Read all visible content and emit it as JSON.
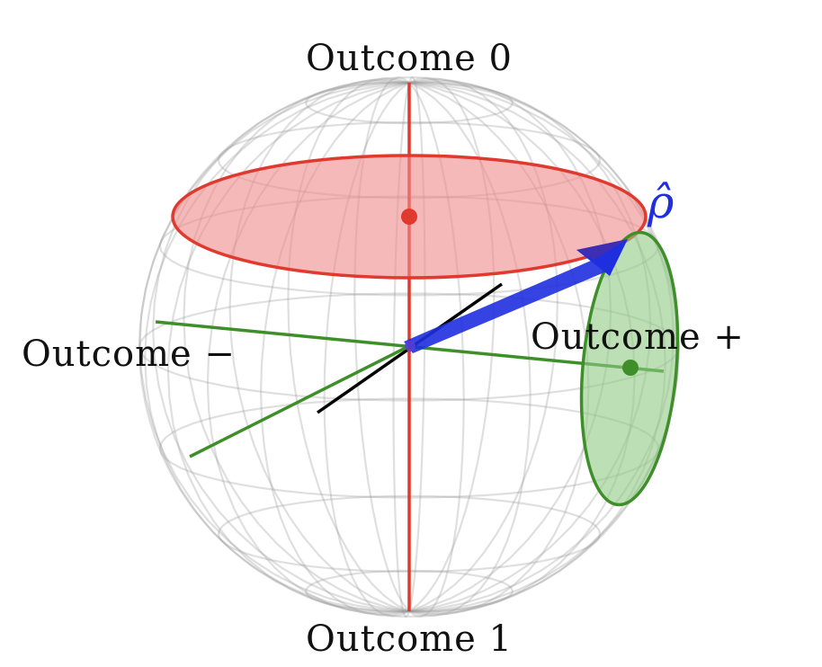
{
  "labels": {
    "top": "Outcome 0",
    "bottom": "Outcome 1",
    "left": "Outcome −",
    "right": "Outcome +",
    "state": "ρ̂"
  },
  "colors": {
    "grid": "#9a9a9a",
    "red": "#e03a2f",
    "red_fill": "#f08a8a",
    "green": "#3e8f2a",
    "green_fill": "#8fca84",
    "blue": "#1f2fe0",
    "axis_black": "#000000"
  }
}
